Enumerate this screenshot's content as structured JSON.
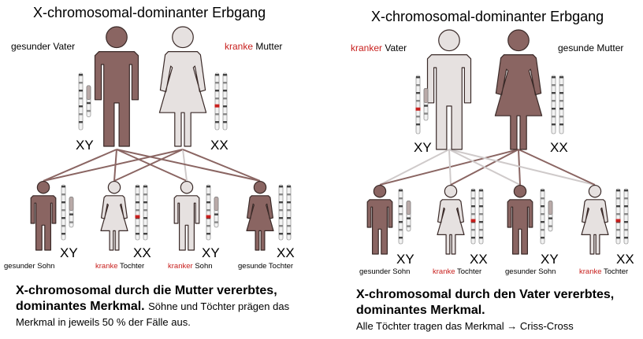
{
  "colors": {
    "affected": "#8a6562",
    "healthy": "#e6e1e0",
    "outline": "#3a2a28",
    "line_affected": "#8a6562",
    "line_healthy": "#cfcaca",
    "red_text": "#c8201e"
  },
  "left": {
    "title": "X-chromosomal-dominanter Erbgang",
    "father": {
      "prefix": "gesunder",
      "suffix": "Vater",
      "prefix_red": false
    },
    "mother": {
      "prefix": "kranke",
      "suffix": "Mutter",
      "prefix_red": true
    },
    "father_genotype": "XY",
    "mother_genotype": "XX",
    "children": [
      {
        "prefix": "gesunder",
        "suffix": "Sohn",
        "red": false,
        "genotype": "XY"
      },
      {
        "prefix": "kranke",
        "suffix": "Tochter",
        "red": true,
        "genotype": "XX"
      },
      {
        "prefix": "kranker",
        "suffix": "Sohn",
        "red": true,
        "genotype": "XY"
      },
      {
        "prefix": "gesunde",
        "suffix": "Tochter",
        "red": false,
        "genotype": "XX"
      }
    ],
    "caption_bold": "X-chromosomal durch die Mutter vererbtes, dominantes Merkmal.",
    "caption_normal": "Söhne und Töchter prägen das Merkmal in jeweils 50 % der Fälle aus."
  },
  "right": {
    "title": "X-chromosomal-dominanter Erbgang",
    "father": {
      "prefix": "kranker",
      "suffix": "Vater",
      "prefix_red": true
    },
    "mother": {
      "prefix": "gesunde",
      "suffix": "Mutter",
      "prefix_red": false
    },
    "father_genotype": "XY",
    "mother_genotype": "XX",
    "children": [
      {
        "prefix": "gesunder",
        "suffix": "Sohn",
        "red": false,
        "genotype": "XY"
      },
      {
        "prefix": "kranke",
        "suffix": "Tochter",
        "red": true,
        "genotype": "XX"
      },
      {
        "prefix": "gesunder",
        "suffix": "Sohn",
        "red": false,
        "genotype": "XY"
      },
      {
        "prefix": "kranke",
        "suffix": "Tochter",
        "red": true,
        "genotype": "XX"
      }
    ],
    "caption_bold": "X-chromosomal durch den Vater vererbtes, dominantes Merkmal.",
    "caption_normal": "Alle Töchter tragen das Merkmal",
    "caption_arrow": "→",
    "caption_tail": "Criss-Cross"
  }
}
